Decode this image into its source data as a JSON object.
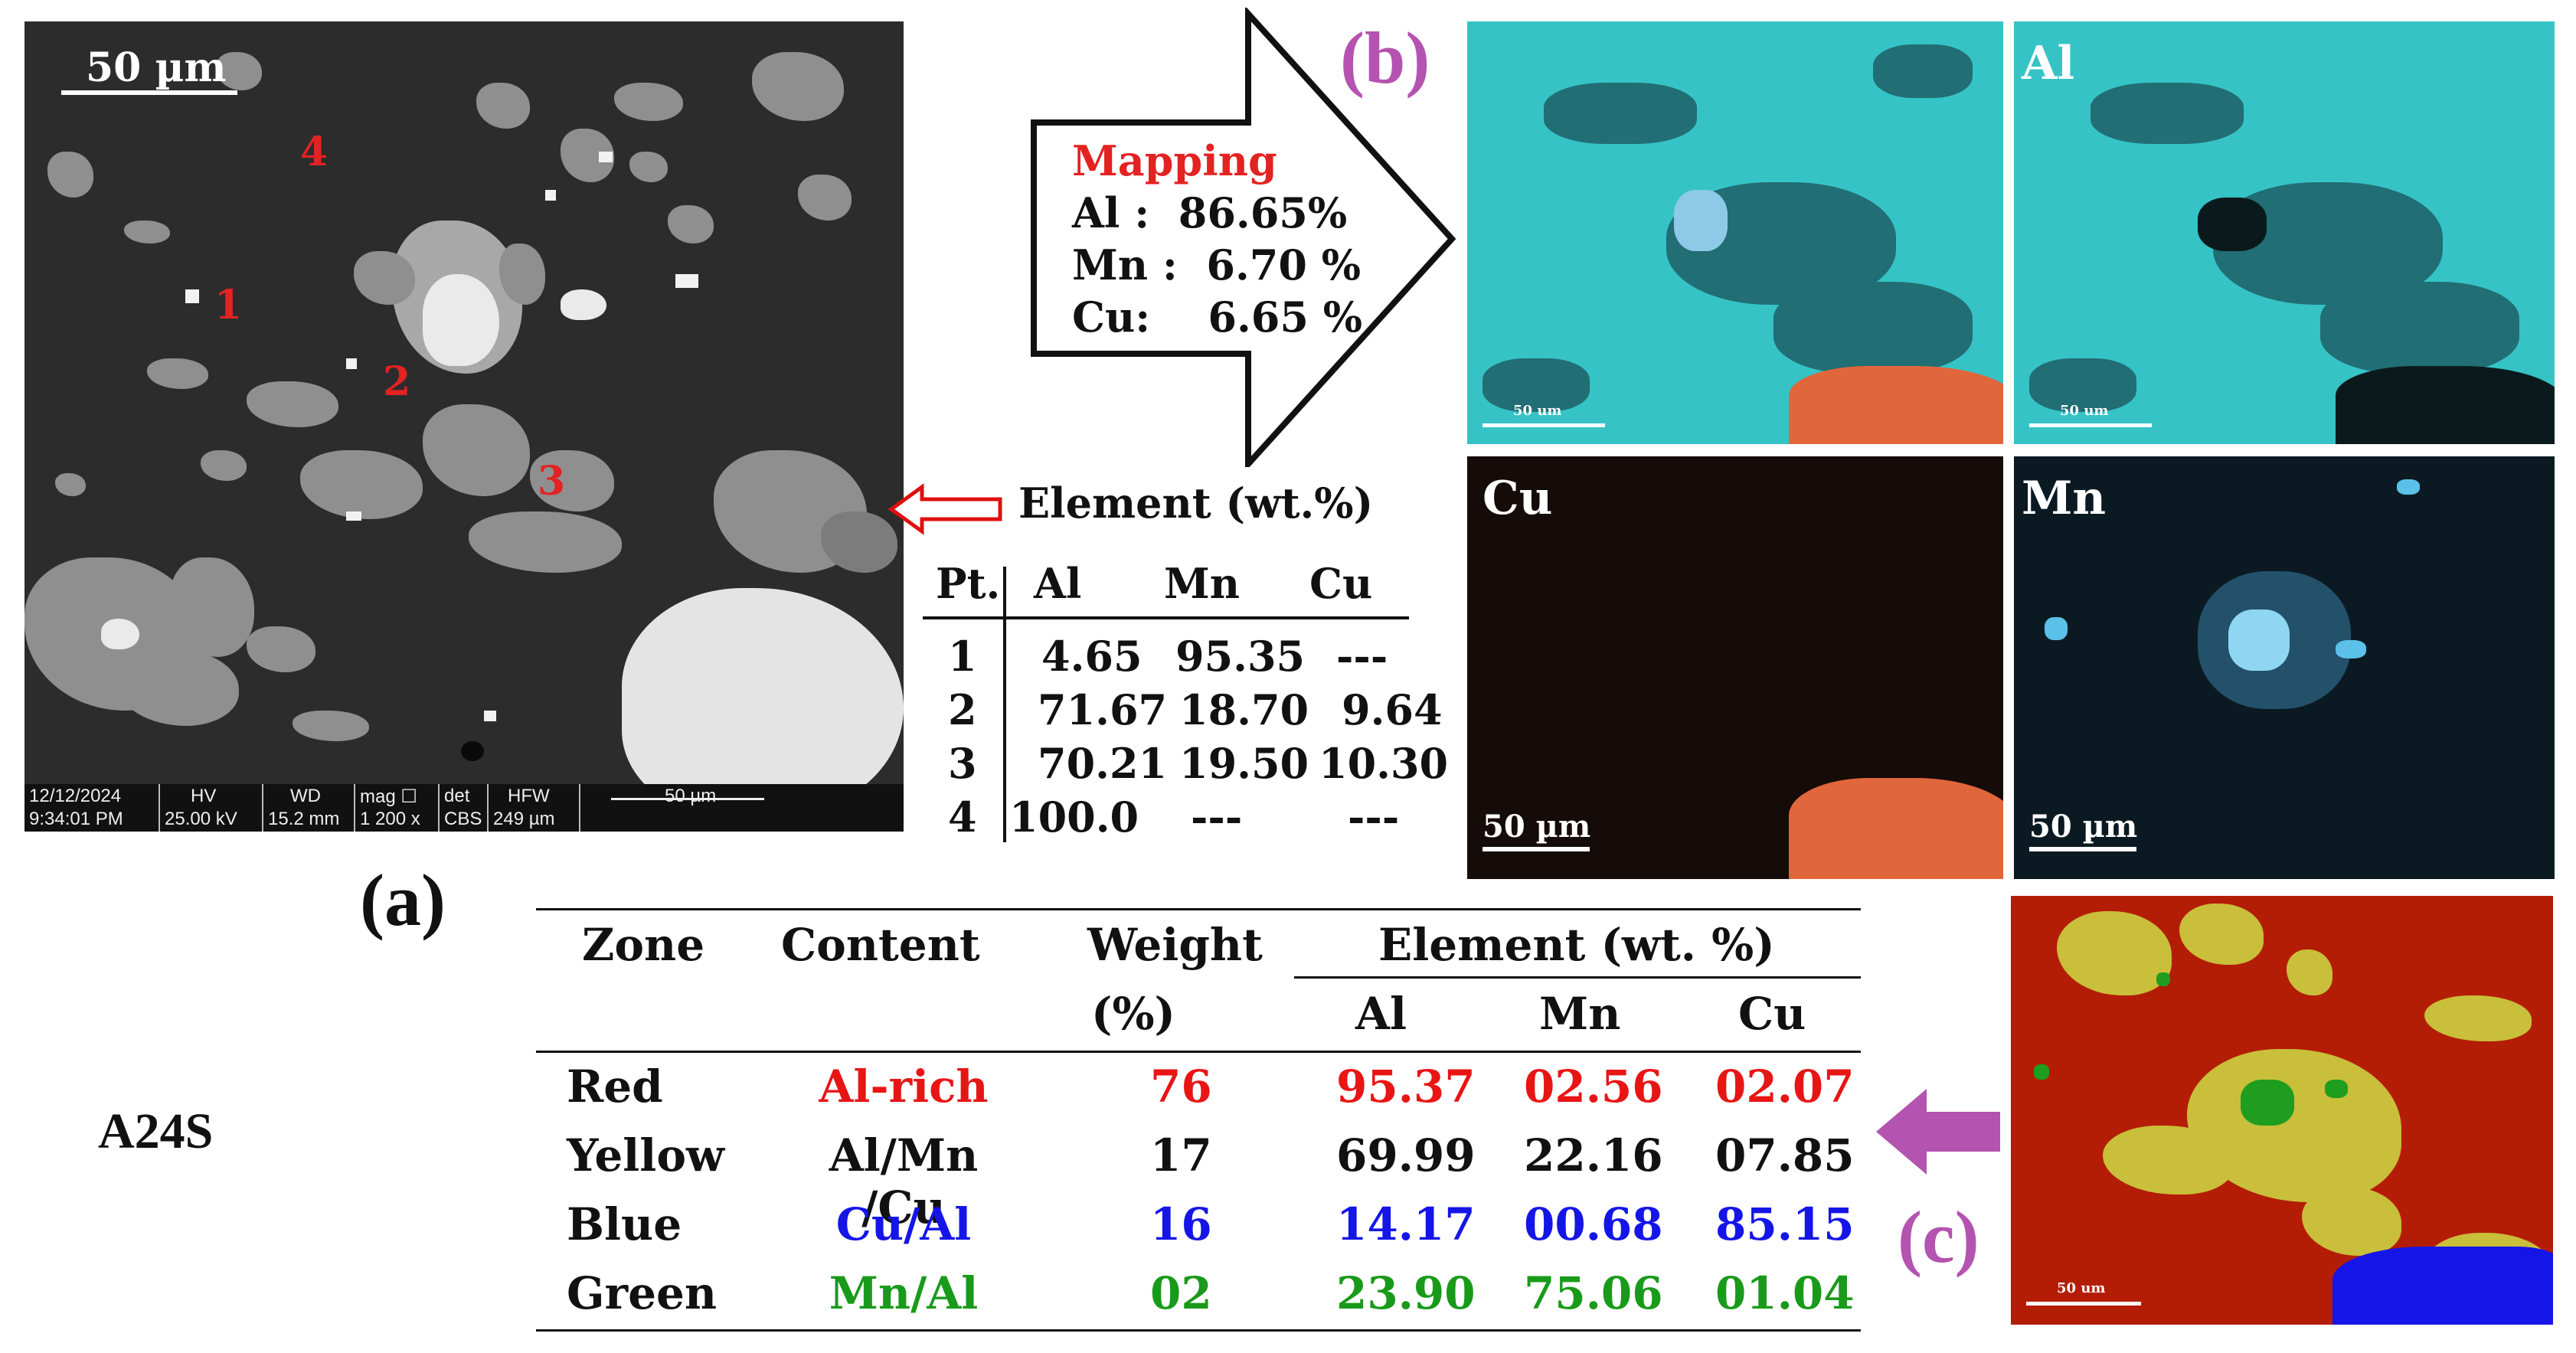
{
  "panel_a": {
    "label": "(a)",
    "scale_label": "50 µm",
    "points": [
      "1",
      "2",
      "3",
      "4"
    ],
    "info_bar": {
      "date": "12/12/2024",
      "time": "9:34:01 PM",
      "hv_label": "HV",
      "hv": "25.00 kV",
      "wd_label": "WD",
      "wd": "15.2 mm",
      "mag_label": "mag ☐",
      "mag": "1 200 x",
      "det_label": "det",
      "det": "CBS",
      "hfw_label": "HFW",
      "hfw": "249 µm",
      "scale": "50 µm"
    }
  },
  "mapping_box": {
    "title": "Mapping",
    "lines": [
      "Al :  86.65%",
      "Mn :  6.70 %",
      "Cu:    6.65 %"
    ]
  },
  "panel_b": {
    "label": "(b)",
    "maps": [
      {
        "label": "",
        "scale": "50 um"
      },
      {
        "label": "Al",
        "scale": "50 um"
      },
      {
        "label": "Cu",
        "scale": "50 µm"
      },
      {
        "label": "Mn",
        "scale": "50 µm"
      }
    ]
  },
  "element_table": {
    "title": "Element (wt.%)",
    "headers": [
      "Pt.",
      "Al",
      "Mn",
      "Cu"
    ],
    "rows": [
      [
        "1",
        "4.65",
        "95.35",
        "---"
      ],
      [
        "2",
        "71.67",
        "18.70",
        "9.64"
      ],
      [
        "3",
        "70.21",
        "19.50",
        "10.30"
      ],
      [
        "4",
        "100.0",
        "---",
        "---"
      ]
    ]
  },
  "zone_table": {
    "sample": "A24S",
    "headers": {
      "zone": "Zone",
      "content": "Content",
      "weight": "Weight",
      "weight_unit": "(%)",
      "element": "Element (wt. %)",
      "al": "Al",
      "mn": "Mn",
      "cu": "Cu"
    },
    "rows": [
      {
        "zone": "Red",
        "content": "Al-rich",
        "weight": "76",
        "al": "95.37",
        "mn": "02.56",
        "cu": "02.07",
        "color": "#e81515"
      },
      {
        "zone": "Yellow",
        "content": "Al/Mn /Cu",
        "weight": "17",
        "al": "69.99",
        "mn": "22.16",
        "cu": "07.85",
        "color": "#111111"
      },
      {
        "zone": "Blue",
        "content": "Cu/Al",
        "weight": "16",
        "al": "14.17",
        "mn": "00.68",
        "cu": "85.15",
        "color": "#1515e8"
      },
      {
        "zone": "Green",
        "content": "Mn/Al",
        "weight": "02",
        "al": "23.90",
        "mn": "75.06",
        "cu": "01.04",
        "color": "#1a9a1a"
      }
    ]
  },
  "panel_c": {
    "label": "(c)",
    "scale": "50 um"
  },
  "colors": {
    "accent_purple": "#b453b0",
    "red_label": "#e32222",
    "arrow_red": "#e01010",
    "teal_map": "#36c3c6",
    "copper": "#e0663b"
  }
}
